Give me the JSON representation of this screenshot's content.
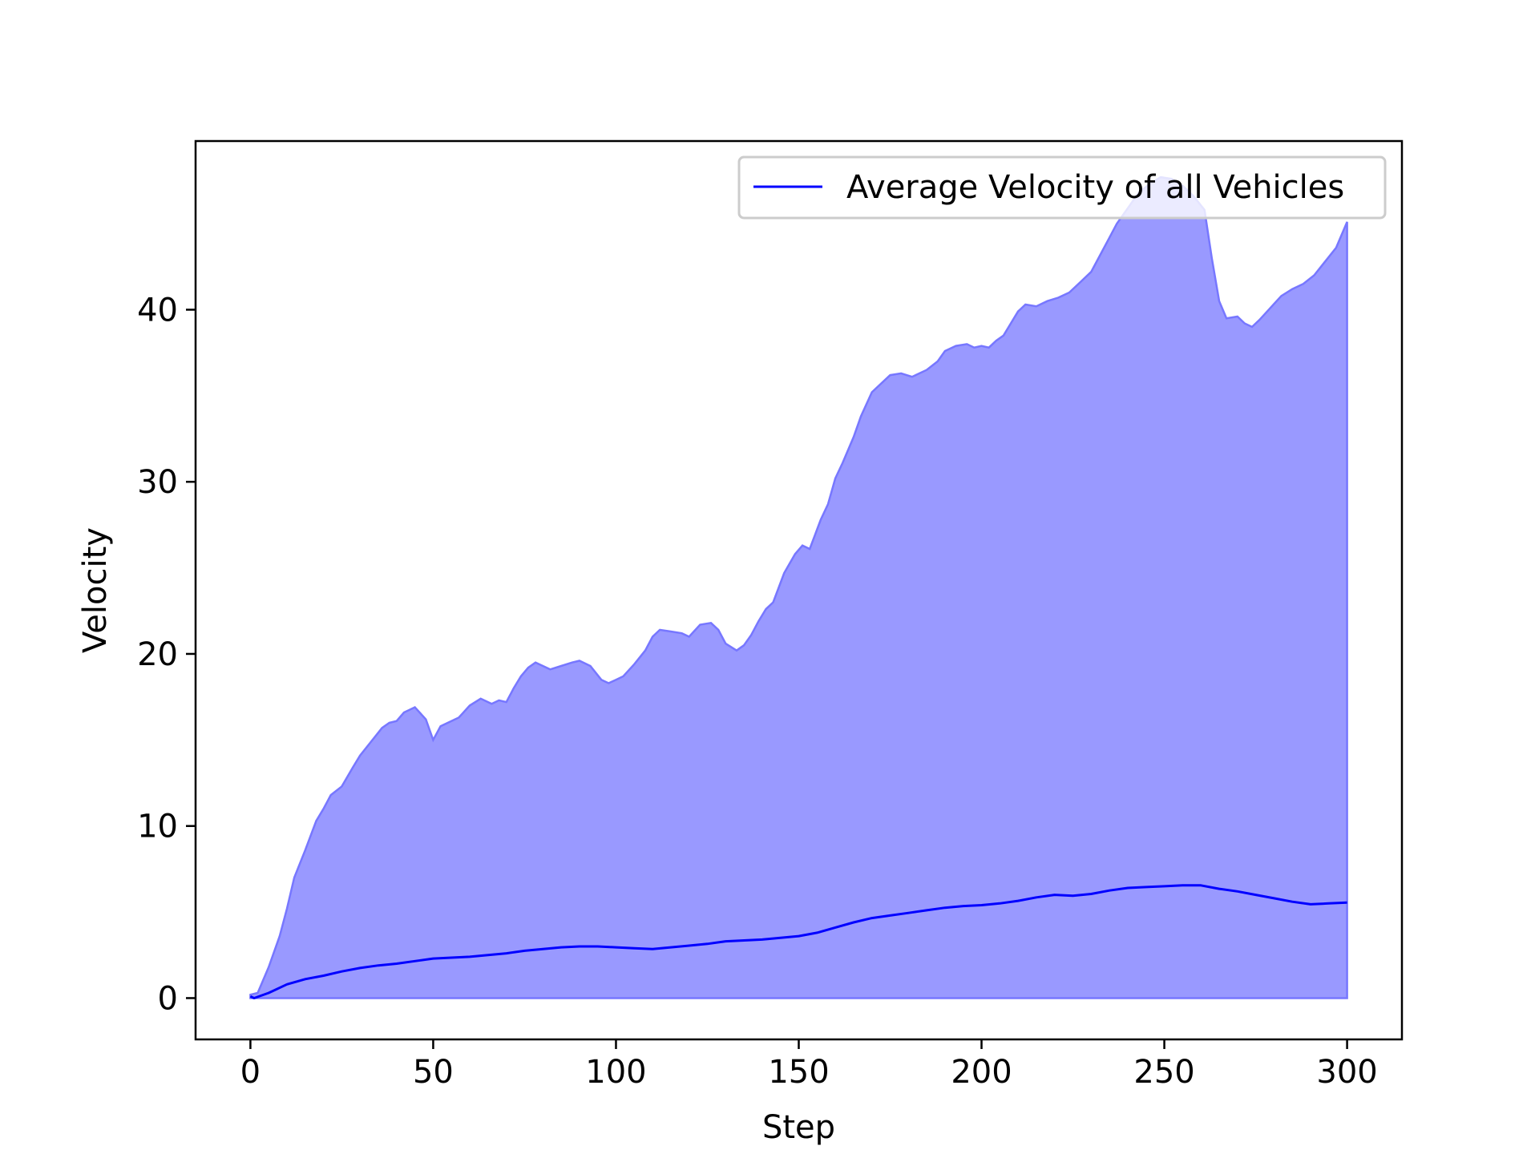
{
  "chart_data": {
    "type": "area",
    "xlabel": "Step",
    "ylabel": "Velocity",
    "xlim": [
      -15,
      315
    ],
    "ylim": [
      -2.4,
      49.8
    ],
    "xticks": [
      0,
      50,
      100,
      150,
      200,
      250,
      300
    ],
    "yticks": [
      0,
      10,
      20,
      30,
      40
    ],
    "grid": false,
    "legend_position": "top-right",
    "legend": [
      "Average Velocity of all Vehicles"
    ],
    "colors": {
      "line": "#0000ff",
      "fill": "#9999ff",
      "fill_edge": "#7777ff"
    },
    "series": [
      {
        "name": "Average Velocity of all Vehicles",
        "role": "line",
        "x": [
          0,
          1,
          5,
          10,
          15,
          20,
          25,
          30,
          35,
          40,
          45,
          50,
          55,
          60,
          65,
          70,
          75,
          80,
          85,
          90,
          95,
          100,
          105,
          110,
          115,
          120,
          125,
          130,
          135,
          140,
          145,
          150,
          155,
          160,
          165,
          170,
          175,
          180,
          185,
          190,
          195,
          200,
          205,
          210,
          215,
          220,
          225,
          230,
          235,
          240,
          245,
          250,
          255,
          260,
          265,
          270,
          275,
          280,
          285,
          290,
          295,
          300
        ],
        "y": [
          0.1,
          0.0,
          0.3,
          0.8,
          1.1,
          1.3,
          1.55,
          1.75,
          1.9,
          2.0,
          2.15,
          2.3,
          2.35,
          2.4,
          2.5,
          2.6,
          2.75,
          2.85,
          2.95,
          3.0,
          3.0,
          2.95,
          2.9,
          2.85,
          2.95,
          3.05,
          3.15,
          3.3,
          3.35,
          3.4,
          3.5,
          3.6,
          3.8,
          4.1,
          4.4,
          4.65,
          4.8,
          4.95,
          5.1,
          5.25,
          5.35,
          5.4,
          5.5,
          5.65,
          5.85,
          6.0,
          5.95,
          6.05,
          6.25,
          6.4,
          6.45,
          6.5,
          6.55,
          6.55,
          6.35,
          6.2,
          6.0,
          5.8,
          5.6,
          5.45,
          5.5,
          5.55
        ]
      },
      {
        "name": "",
        "role": "band-upper",
        "x": [
          0,
          2,
          5,
          8,
          10,
          12,
          15,
          18,
          20,
          22,
          25,
          28,
          30,
          33,
          36,
          38,
          40,
          42,
          45,
          48,
          50,
          52,
          54,
          57,
          60,
          63,
          66,
          68,
          70,
          72,
          74,
          76,
          78,
          80,
          82,
          85,
          88,
          90,
          93,
          96,
          98,
          100,
          102,
          105,
          108,
          110,
          112,
          115,
          118,
          120,
          123,
          126,
          128,
          130,
          133,
          135,
          137,
          139,
          141,
          143,
          146,
          149,
          151,
          153,
          156,
          158,
          160,
          162,
          165,
          167,
          170,
          172,
          175,
          178,
          181,
          185,
          188,
          190,
          193,
          196,
          198,
          200,
          202,
          204,
          206,
          208,
          210,
          212,
          215,
          218,
          221,
          224,
          227,
          230,
          232,
          235,
          237,
          240,
          243,
          246,
          249,
          252,
          255,
          258,
          261,
          263,
          265,
          267,
          270,
          272,
          274,
          276,
          279,
          282,
          285,
          288,
          291,
          294,
          297,
          300
        ],
        "y": [
          0.2,
          0.3,
          1.8,
          3.6,
          5.2,
          7.0,
          8.6,
          10.3,
          11.0,
          11.8,
          12.3,
          13.4,
          14.1,
          14.9,
          15.7,
          16.0,
          16.1,
          16.6,
          16.9,
          16.2,
          15.0,
          15.8,
          16.0,
          16.3,
          17.0,
          17.4,
          17.1,
          17.3,
          17.2,
          18.0,
          18.7,
          19.2,
          19.5,
          19.3,
          19.1,
          19.3,
          19.5,
          19.6,
          19.3,
          18.5,
          18.3,
          18.5,
          18.7,
          19.4,
          20.2,
          21.0,
          21.4,
          21.3,
          21.2,
          21.0,
          21.7,
          21.8,
          21.4,
          20.6,
          20.2,
          20.5,
          21.1,
          21.9,
          22.6,
          23.0,
          24.7,
          25.8,
          26.3,
          26.1,
          27.8,
          28.7,
          30.2,
          31.1,
          32.6,
          33.8,
          35.2,
          35.6,
          36.2,
          36.3,
          36.1,
          36.5,
          37.0,
          37.6,
          37.9,
          38.0,
          37.8,
          37.9,
          37.8,
          38.2,
          38.5,
          39.2,
          39.9,
          40.3,
          40.2,
          40.5,
          40.7,
          41.0,
          41.6,
          42.2,
          43.0,
          44.2,
          45.0,
          45.9,
          46.8,
          47.3,
          47.7,
          47.6,
          47.2,
          46.6,
          45.8,
          43.0,
          40.5,
          39.5,
          39.6,
          39.2,
          39.0,
          39.4,
          40.1,
          40.8,
          41.2,
          41.5,
          42.0,
          42.8,
          43.6,
          45.1
        ]
      }
    ]
  }
}
